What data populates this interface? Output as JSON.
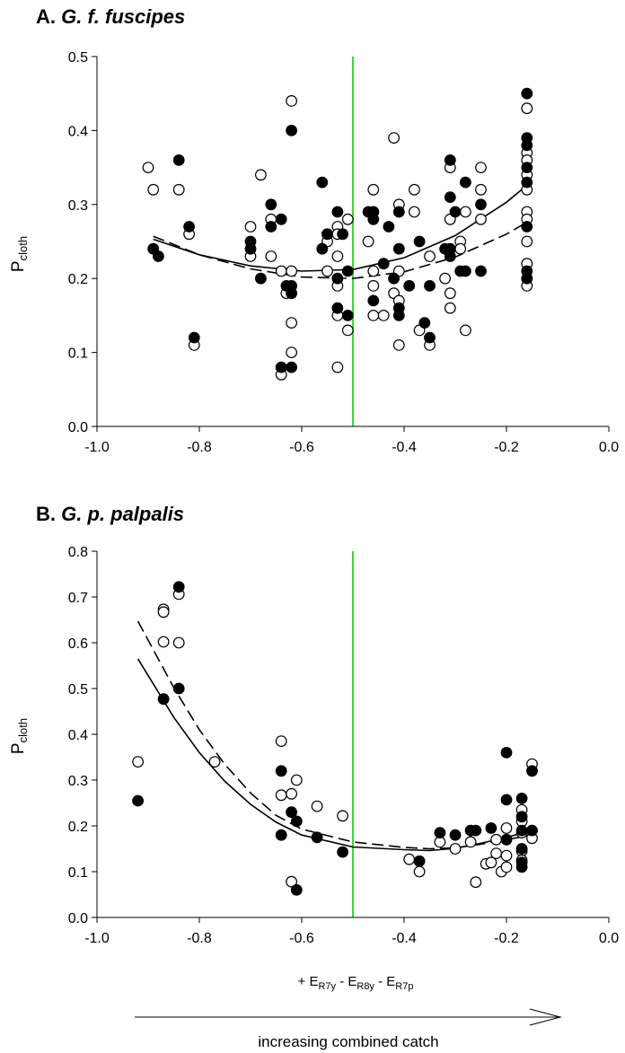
{
  "chart_data": [
    {
      "type": "scatter",
      "panel_label": "A.",
      "species": "G. f. fuscipes",
      "ylabel_main": "P",
      "ylabel_sub": "cloth",
      "xlim": [
        -1.0,
        0.0
      ],
      "ylim": [
        0.0,
        0.5
      ],
      "x_ticks": [
        "-1.0",
        "-0.8",
        "-0.6",
        "-0.4",
        "-0.2",
        "0.0"
      ],
      "y_ticks": [
        "0.0",
        "0.1",
        "0.2",
        "0.3",
        "0.4",
        "0.5"
      ],
      "vertical_line_x": -0.5,
      "vertical_line_color": "#33dd33",
      "series": [
        {
          "fill": "#000000",
          "points": [
            [
              -0.89,
              0.24
            ],
            [
              -0.88,
              0.23
            ],
            [
              -0.84,
              0.36
            ],
            [
              -0.82,
              0.27
            ],
            [
              -0.81,
              0.12
            ],
            [
              -0.7,
              0.25
            ],
            [
              -0.7,
              0.24
            ],
            [
              -0.68,
              0.2
            ],
            [
              -0.66,
              0.3
            ],
            [
              -0.66,
              0.27
            ],
            [
              -0.64,
              0.28
            ],
            [
              -0.64,
              0.08
            ],
            [
              -0.63,
              0.19
            ],
            [
              -0.62,
              0.4
            ],
            [
              -0.62,
              0.19
            ],
            [
              -0.62,
              0.08
            ],
            [
              -0.62,
              0.18
            ],
            [
              -0.56,
              0.33
            ],
            [
              -0.56,
              0.24
            ],
            [
              -0.55,
              0.26
            ],
            [
              -0.53,
              0.29
            ],
            [
              -0.53,
              0.2
            ],
            [
              -0.53,
              0.16
            ],
            [
              -0.52,
              0.26
            ],
            [
              -0.51,
              0.21
            ],
            [
              -0.51,
              0.15
            ],
            [
              -0.47,
              0.29
            ],
            [
              -0.46,
              0.29
            ],
            [
              -0.46,
              0.28
            ],
            [
              -0.46,
              0.17
            ],
            [
              -0.44,
              0.22
            ],
            [
              -0.43,
              0.27
            ],
            [
              -0.42,
              0.2
            ],
            [
              -0.41,
              0.29
            ],
            [
              -0.41,
              0.24
            ],
            [
              -0.41,
              0.16
            ],
            [
              -0.41,
              0.15
            ],
            [
              -0.39,
              0.19
            ],
            [
              -0.37,
              0.25
            ],
            [
              -0.36,
              0.14
            ],
            [
              -0.35,
              0.19
            ],
            [
              -0.35,
              0.12
            ],
            [
              -0.32,
              0.24
            ],
            [
              -0.31,
              0.36
            ],
            [
              -0.31,
              0.31
            ],
            [
              -0.31,
              0.24
            ],
            [
              -0.31,
              0.23
            ],
            [
              -0.3,
              0.29
            ],
            [
              -0.29,
              0.21
            ],
            [
              -0.28,
              0.33
            ],
            [
              -0.28,
              0.21
            ],
            [
              -0.25,
              0.3
            ],
            [
              -0.25,
              0.21
            ],
            [
              -0.16,
              0.45
            ],
            [
              -0.16,
              0.39
            ],
            [
              -0.16,
              0.38
            ],
            [
              -0.16,
              0.35
            ],
            [
              -0.16,
              0.33
            ],
            [
              -0.16,
              0.27
            ],
            [
              -0.16,
              0.21
            ],
            [
              -0.16,
              0.2
            ]
          ]
        },
        {
          "fill": "#ffffff",
          "points": [
            [
              -0.9,
              0.35
            ],
            [
              -0.89,
              0.32
            ],
            [
              -0.84,
              0.32
            ],
            [
              -0.82,
              0.26
            ],
            [
              -0.81,
              0.11
            ],
            [
              -0.7,
              0.27
            ],
            [
              -0.7,
              0.23
            ],
            [
              -0.68,
              0.34
            ],
            [
              -0.66,
              0.28
            ],
            [
              -0.66,
              0.23
            ],
            [
              -0.64,
              0.21
            ],
            [
              -0.64,
              0.07
            ],
            [
              -0.63,
              0.18
            ],
            [
              -0.62,
              0.44
            ],
            [
              -0.62,
              0.21
            ],
            [
              -0.62,
              0.14
            ],
            [
              -0.62,
              0.1
            ],
            [
              -0.55,
              0.26
            ],
            [
              -0.55,
              0.25
            ],
            [
              -0.55,
              0.21
            ],
            [
              -0.53,
              0.27
            ],
            [
              -0.53,
              0.26
            ],
            [
              -0.53,
              0.23
            ],
            [
              -0.53,
              0.19
            ],
            [
              -0.53,
              0.15
            ],
            [
              -0.53,
              0.08
            ],
            [
              -0.51,
              0.28
            ],
            [
              -0.51,
              0.13
            ],
            [
              -0.47,
              0.25
            ],
            [
              -0.46,
              0.32
            ],
            [
              -0.46,
              0.29
            ],
            [
              -0.46,
              0.21
            ],
            [
              -0.46,
              0.19
            ],
            [
              -0.46,
              0.15
            ],
            [
              -0.44,
              0.15
            ],
            [
              -0.42,
              0.39
            ],
            [
              -0.42,
              0.18
            ],
            [
              -0.41,
              0.3
            ],
            [
              -0.41,
              0.21
            ],
            [
              -0.41,
              0.17
            ],
            [
              -0.41,
              0.11
            ],
            [
              -0.38,
              0.32
            ],
            [
              -0.38,
              0.29
            ],
            [
              -0.37,
              0.13
            ],
            [
              -0.35,
              0.23
            ],
            [
              -0.35,
              0.11
            ],
            [
              -0.32,
              0.2
            ],
            [
              -0.31,
              0.35
            ],
            [
              -0.31,
              0.28
            ],
            [
              -0.31,
              0.18
            ],
            [
              -0.31,
              0.16
            ],
            [
              -0.29,
              0.25
            ],
            [
              -0.29,
              0.24
            ],
            [
              -0.28,
              0.29
            ],
            [
              -0.28,
              0.13
            ],
            [
              -0.25,
              0.35
            ],
            [
              -0.25,
              0.32
            ],
            [
              -0.25,
              0.28
            ],
            [
              -0.16,
              0.43
            ],
            [
              -0.16,
              0.37
            ],
            [
              -0.16,
              0.36
            ],
            [
              -0.16,
              0.34
            ],
            [
              -0.16,
              0.32
            ],
            [
              -0.16,
              0.29
            ],
            [
              -0.16,
              0.28
            ],
            [
              -0.16,
              0.25
            ],
            [
              -0.16,
              0.22
            ],
            [
              -0.16,
              0.2
            ],
            [
              -0.16,
              0.19
            ]
          ]
        }
      ],
      "curves": [
        {
          "dash": "none",
          "points": [
            [
              -0.89,
              0.253
            ],
            [
              -0.8,
              0.232
            ],
            [
              -0.7,
              0.217
            ],
            [
              -0.6,
              0.21
            ],
            [
              -0.5,
              0.212
            ],
            [
              -0.4,
              0.228
            ],
            [
              -0.3,
              0.258
            ],
            [
              -0.2,
              0.303
            ],
            [
              -0.16,
              0.326
            ]
          ]
        },
        {
          "dash": "13 6",
          "points": [
            [
              -0.89,
              0.257
            ],
            [
              -0.8,
              0.232
            ],
            [
              -0.7,
              0.213
            ],
            [
              -0.6,
              0.202
            ],
            [
              -0.5,
              0.2
            ],
            [
              -0.4,
              0.209
            ],
            [
              -0.3,
              0.229
            ],
            [
              -0.2,
              0.26
            ],
            [
              -0.16,
              0.276
            ]
          ]
        }
      ]
    },
    {
      "type": "scatter",
      "panel_label": "B.",
      "species": "G. p. palpalis",
      "ylabel_main": "P",
      "ylabel_sub": "cloth",
      "xlim": [
        -1.0,
        0.0
      ],
      "ylim": [
        0.0,
        0.8
      ],
      "x_ticks": [
        "-1.0",
        "-0.8",
        "-0.6",
        "-0.4",
        "-0.2",
        "0.0"
      ],
      "y_ticks": [
        "0.0",
        "0.1",
        "0.2",
        "0.3",
        "0.4",
        "0.5",
        "0.6",
        "0.7",
        "0.8"
      ],
      "vertical_line_x": -0.5,
      "vertical_line_color": "#33dd33",
      "series": [
        {
          "fill": "#000000",
          "points": [
            [
              -0.92,
              0.255
            ],
            [
              -0.87,
              0.477
            ],
            [
              -0.84,
              0.722
            ],
            [
              -0.84,
              0.5
            ],
            [
              -0.64,
              0.32
            ],
            [
              -0.64,
              0.18
            ],
            [
              -0.62,
              0.23
            ],
            [
              -0.61,
              0.21
            ],
            [
              -0.61,
              0.06
            ],
            [
              -0.57,
              0.175
            ],
            [
              -0.52,
              0.143
            ],
            [
              -0.37,
              0.123
            ],
            [
              -0.33,
              0.185
            ],
            [
              -0.3,
              0.18
            ],
            [
              -0.27,
              0.19
            ],
            [
              -0.26,
              0.19
            ],
            [
              -0.23,
              0.195
            ],
            [
              -0.2,
              0.36
            ],
            [
              -0.2,
              0.257
            ],
            [
              -0.2,
              0.17
            ],
            [
              -0.17,
              0.26
            ],
            [
              -0.17,
              0.22
            ],
            [
              -0.17,
              0.19
            ],
            [
              -0.17,
              0.15
            ],
            [
              -0.17,
              0.12
            ],
            [
              -0.17,
              0.11
            ],
            [
              -0.15,
              0.32
            ],
            [
              -0.15,
              0.19
            ]
          ]
        },
        {
          "fill": "#ffffff",
          "points": [
            [
              -0.92,
              0.34
            ],
            [
              -0.87,
              0.673
            ],
            [
              -0.87,
              0.667
            ],
            [
              -0.87,
              0.602
            ],
            [
              -0.84,
              0.706
            ],
            [
              -0.84,
              0.6
            ],
            [
              -0.77,
              0.34
            ],
            [
              -0.64,
              0.385
            ],
            [
              -0.64,
              0.267
            ],
            [
              -0.62,
              0.27
            ],
            [
              -0.62,
              0.078
            ],
            [
              -0.61,
              0.3
            ],
            [
              -0.57,
              0.243
            ],
            [
              -0.52,
              0.222
            ],
            [
              -0.39,
              0.127
            ],
            [
              -0.37,
              0.1
            ],
            [
              -0.33,
              0.165
            ],
            [
              -0.3,
              0.15
            ],
            [
              -0.27,
              0.165
            ],
            [
              -0.26,
              0.077
            ],
            [
              -0.24,
              0.117
            ],
            [
              -0.23,
              0.12
            ],
            [
              -0.22,
              0.14
            ],
            [
              -0.22,
              0.17
            ],
            [
              -0.21,
              0.1
            ],
            [
              -0.2,
              0.195
            ],
            [
              -0.2,
              0.135
            ],
            [
              -0.2,
              0.11
            ],
            [
              -0.17,
              0.235
            ],
            [
              -0.17,
              0.21
            ],
            [
              -0.17,
              0.185
            ],
            [
              -0.17,
              0.145
            ],
            [
              -0.17,
              0.125
            ],
            [
              -0.15,
              0.335
            ],
            [
              -0.15,
              0.173
            ]
          ]
        }
      ],
      "curves": [
        {
          "dash": "none",
          "points": [
            [
              -0.92,
              0.565
            ],
            [
              -0.85,
              0.437
            ],
            [
              -0.8,
              0.36
            ],
            [
              -0.75,
              0.297
            ],
            [
              -0.7,
              0.247
            ],
            [
              -0.65,
              0.208
            ],
            [
              -0.6,
              0.18
            ],
            [
              -0.5,
              0.154
            ],
            [
              -0.4,
              0.148
            ],
            [
              -0.35,
              0.146
            ],
            [
              -0.3,
              0.151
            ],
            [
              -0.25,
              0.162
            ],
            [
              -0.2,
              0.175
            ],
            [
              -0.15,
              0.19
            ]
          ]
        },
        {
          "dash": "13 6",
          "points": [
            [
              -0.92,
              0.647
            ],
            [
              -0.85,
              0.502
            ],
            [
              -0.8,
              0.41
            ],
            [
              -0.75,
              0.334
            ],
            [
              -0.7,
              0.272
            ],
            [
              -0.65,
              0.223
            ],
            [
              -0.6,
              0.193
            ],
            [
              -0.5,
              0.165
            ],
            [
              -0.4,
              0.153
            ],
            [
              -0.35,
              0.15
            ],
            [
              -0.3,
              0.152
            ],
            [
              -0.25,
              0.16
            ],
            [
              -0.2,
              0.17
            ],
            [
              -0.15,
              0.18
            ]
          ]
        }
      ]
    }
  ],
  "x_axis_label": {
    "prefix": "+ E",
    "sub1": "R7y",
    "middle1": " - E",
    "sub2": "R8y",
    "middle2": " - E",
    "sub3": "R7p"
  },
  "arrow_caption": "increasing combined catch"
}
